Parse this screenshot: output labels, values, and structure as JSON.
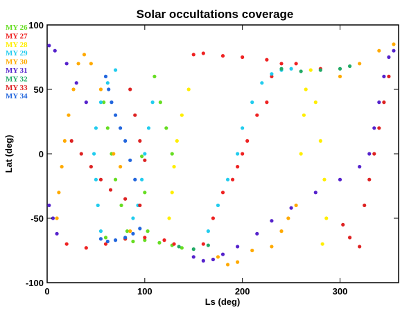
{
  "chart_data": {
    "type": "scatter",
    "title": "Solar occultations coverage",
    "xlabel": "Ls (deg)",
    "ylabel": "Lat (deg)",
    "xlim": [
      0,
      360
    ],
    "ylim": [
      -100,
      100
    ],
    "xticks": [
      0,
      100,
      200,
      300
    ],
    "yticks": [
      -100,
      -50,
      0,
      50,
      100
    ],
    "grid": false,
    "legend_position": "top-left",
    "series": [
      {
        "name": "MY 26",
        "color": "#66dd22",
        "points": [
          [
            60,
            -65
          ],
          [
            80,
            -66
          ],
          [
            100,
            -67
          ],
          [
            115,
            -69
          ],
          [
            128,
            -71
          ],
          [
            138,
            -73
          ],
          [
            58,
            40
          ],
          [
            62,
            20
          ],
          [
            66,
            0
          ],
          [
            70,
            -20
          ],
          [
            76,
            -40
          ],
          [
            82,
            -60
          ],
          [
            88,
            -68
          ],
          [
            97,
            -2
          ],
          [
            100,
            -30
          ],
          [
            103,
            -60
          ],
          [
            110,
            60
          ],
          [
            116,
            40
          ],
          [
            122,
            20
          ],
          [
            128,
            0
          ]
        ]
      },
      {
        "name": "MY 27",
        "color": "#ee2222",
        "points": [
          [
            20,
            -70
          ],
          [
            40,
            -73
          ],
          [
            60,
            -70
          ],
          [
            80,
            -66
          ],
          [
            100,
            -65
          ],
          [
            120,
            -67
          ],
          [
            130,
            -70
          ],
          [
            150,
            77
          ],
          [
            160,
            78
          ],
          [
            180,
            76
          ],
          [
            200,
            75
          ],
          [
            225,
            73
          ],
          [
            255,
            70
          ],
          [
            280,
            66
          ],
          [
            160,
            -70
          ],
          [
            170,
            -50
          ],
          [
            180,
            -30
          ],
          [
            190,
            -20
          ],
          [
            195,
            -10
          ],
          [
            200,
            0
          ],
          [
            205,
            10
          ],
          [
            215,
            30
          ],
          [
            225,
            40
          ],
          [
            230,
            60
          ],
          [
            240,
            70
          ]
        ]
      },
      {
        "name": "MY 28",
        "color": "#ffee00",
        "points": [
          [
            125,
            -50
          ],
          [
            128,
            -30
          ],
          [
            130,
            -10
          ],
          [
            133,
            10
          ],
          [
            138,
            30
          ],
          [
            145,
            50
          ],
          [
            260,
            0
          ],
          [
            263,
            30
          ],
          [
            265,
            50
          ],
          [
            270,
            65
          ],
          [
            275,
            40
          ],
          [
            280,
            10
          ],
          [
            284,
            -20
          ],
          [
            286,
            -50
          ],
          [
            282,
            -70
          ]
        ]
      },
      {
        "name": "MY 29",
        "color": "#22ccee",
        "points": [
          [
            55,
            -60
          ],
          [
            52,
            -40
          ],
          [
            50,
            -20
          ],
          [
            48,
            0
          ],
          [
            50,
            20
          ],
          [
            55,
            40
          ],
          [
            62,
            55
          ],
          [
            70,
            65
          ],
          [
            88,
            -50
          ],
          [
            93,
            -40
          ],
          [
            97,
            -20
          ],
          [
            100,
            0
          ],
          [
            104,
            20
          ],
          [
            108,
            40
          ],
          [
            165,
            -60
          ],
          [
            175,
            -40
          ],
          [
            185,
            -20
          ],
          [
            195,
            0
          ],
          [
            200,
            20
          ],
          [
            210,
            40
          ],
          [
            220,
            55
          ],
          [
            230,
            62
          ],
          [
            240,
            65
          ],
          [
            250,
            66
          ]
        ]
      },
      {
        "name": "MY 30",
        "color": "#ffaa00",
        "points": [
          [
            10,
            -50
          ],
          [
            12,
            -30
          ],
          [
            15,
            -10
          ],
          [
            18,
            10
          ],
          [
            22,
            30
          ],
          [
            27,
            50
          ],
          [
            32,
            70
          ],
          [
            38,
            77
          ],
          [
            45,
            70
          ],
          [
            55,
            50
          ],
          [
            68,
            0
          ],
          [
            75,
            -10
          ],
          [
            85,
            -60
          ],
          [
            175,
            -80
          ],
          [
            185,
            -86
          ],
          [
            195,
            -84
          ],
          [
            210,
            -75
          ],
          [
            230,
            -72
          ],
          [
            240,
            -60
          ],
          [
            247,
            -50
          ],
          [
            255,
            -40
          ],
          [
            300,
            60
          ],
          [
            320,
            70
          ],
          [
            340,
            80
          ],
          [
            355,
            85
          ]
        ]
      },
      {
        "name": "MY 31",
        "color": "#5522cc",
        "points": [
          [
            2,
            84
          ],
          [
            8,
            80
          ],
          [
            20,
            70
          ],
          [
            30,
            55
          ],
          [
            40,
            40
          ],
          [
            150,
            -80
          ],
          [
            160,
            -83
          ],
          [
            170,
            -82
          ],
          [
            180,
            -78
          ],
          [
            195,
            -72
          ],
          [
            215,
            -62
          ],
          [
            230,
            -52
          ],
          [
            250,
            -42
          ],
          [
            275,
            -30
          ],
          [
            300,
            -20
          ],
          [
            320,
            -10
          ],
          [
            330,
            0
          ],
          [
            335,
            20
          ],
          [
            340,
            40
          ],
          [
            345,
            60
          ],
          [
            350,
            75
          ],
          [
            355,
            80
          ],
          [
            2,
            -40
          ],
          [
            6,
            -50
          ],
          [
            10,
            -62
          ]
        ]
      },
      {
        "name": "MY 32",
        "color": "#22aa66",
        "points": [
          [
            135,
            -72
          ],
          [
            150,
            -74
          ],
          [
            165,
            -71
          ],
          [
            240,
            66
          ],
          [
            260,
            64
          ],
          [
            280,
            65
          ],
          [
            300,
            66
          ],
          [
            310,
            68
          ]
        ]
      },
      {
        "name": "MY 33",
        "color": "#dd2222",
        "points": [
          [
            25,
            10
          ],
          [
            35,
            0
          ],
          [
            45,
            -10
          ],
          [
            55,
            -20
          ],
          [
            65,
            -28
          ],
          [
            80,
            -35
          ],
          [
            95,
            -40
          ],
          [
            85,
            50
          ],
          [
            90,
            30
          ],
          [
            95,
            10
          ],
          [
            100,
            -5
          ],
          [
            303,
            -55
          ],
          [
            310,
            -65
          ],
          [
            320,
            -72
          ],
          [
            325,
            -40
          ],
          [
            330,
            -20
          ],
          [
            335,
            0
          ],
          [
            340,
            20
          ],
          [
            345,
            40
          ],
          [
            350,
            60
          ]
        ]
      },
      {
        "name": "MY 34",
        "color": "#2266dd",
        "points": [
          [
            60,
            60
          ],
          [
            63,
            50
          ],
          [
            66,
            40
          ],
          [
            70,
            30
          ],
          [
            75,
            20
          ],
          [
            80,
            10
          ],
          [
            85,
            -5
          ],
          [
            90,
            -20
          ],
          [
            55,
            -66
          ],
          [
            62,
            -68
          ],
          [
            70,
            -67
          ],
          [
            80,
            -65
          ],
          [
            88,
            -62
          ],
          [
            95,
            -58
          ]
        ]
      }
    ]
  }
}
